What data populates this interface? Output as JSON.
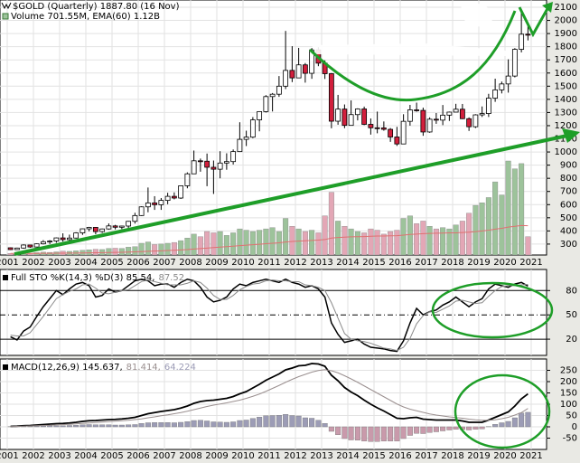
{
  "chart_data": [
    {
      "type": "candlestick",
      "title": "$GOLD (Quarterly) 1887.80 (16 Nov)",
      "legend": "Volume 701.55M, EMA(60) 1.12B",
      "open": [
        272,
        258,
        270,
        293,
        278,
        302,
        318,
        323,
        347,
        334,
        346,
        385,
        416,
        427,
        395,
        415,
        438,
        428,
        437,
        473,
        517,
        583,
        613,
        599,
        632,
        663,
        650,
        743,
        834,
        933,
        930,
        884,
        869,
        916,
        927,
        1003,
        1096,
        1113,
        1244,
        1307,
        1421,
        1439,
        1500,
        1620,
        1563,
        1662,
        1598,
        1776,
        1675,
        1595,
        1234,
        1326,
        1202,
        1284,
        1327,
        1210,
        1184,
        1183,
        1172,
        1114,
        1061,
        1233,
        1320,
        1316,
        1152,
        1249,
        1242,
        1280,
        1303,
        1325,
        1253,
        1192,
        1282,
        1292,
        1409,
        1472,
        1517,
        1577,
        1780,
        1895
      ],
      "high": [
        274,
        273,
        298,
        294,
        305,
        330,
        330,
        350,
        382,
        372,
        390,
        418,
        431,
        430,
        418,
        457,
        446,
        440,
        476,
        538,
        587,
        730,
        664,
        650,
        690,
        693,
        745,
        845,
        1011,
        950,
        988,
        935,
        1006,
        990,
        1019,
        1226,
        1162,
        1265,
        1310,
        1432,
        1448,
        1577,
        1920,
        1804,
        1791,
        1676,
        1790,
        1796,
        1696,
        1600,
        1434,
        1361,
        1392,
        1332,
        1345,
        1255,
        1307,
        1232,
        1182,
        1191,
        1287,
        1358,
        1375,
        1337,
        1263,
        1296,
        1357,
        1307,
        1366,
        1365,
        1263,
        1287,
        1346,
        1442,
        1557,
        1535,
        1704,
        1789,
        2075,
        1966
      ],
      "low": [
        255,
        255,
        265,
        272,
        277,
        297,
        301,
        310,
        319,
        320,
        342,
        370,
        397,
        375,
        385,
        410,
        411,
        414,
        418,
        456,
        514,
        542,
        560,
        560,
        603,
        640,
        643,
        724,
        833,
        850,
        740,
        681,
        800,
        865,
        905,
        1000,
        1045,
        1105,
        1157,
        1300,
        1308,
        1419,
        1478,
        1531,
        1562,
        1527,
        1556,
        1652,
        1555,
        1180,
        1207,
        1181,
        1202,
        1240,
        1204,
        1132,
        1142,
        1162,
        1077,
        1046,
        1061,
        1200,
        1306,
        1123,
        1146,
        1214,
        1204,
        1236,
        1302,
        1250,
        1160,
        1182,
        1266,
        1266,
        1381,
        1445,
        1451,
        1567,
        1757,
        1848
      ],
      "close": [
        258,
        270,
        293,
        278,
        302,
        318,
        323,
        347,
        334,
        346,
        385,
        416,
        427,
        395,
        415,
        438,
        428,
        437,
        473,
        517,
        583,
        613,
        599,
        632,
        663,
        650,
        743,
        834,
        933,
        930,
        884,
        869,
        916,
        927,
        1003,
        1096,
        1113,
        1244,
        1307,
        1421,
        1439,
        1500,
        1620,
        1563,
        1662,
        1598,
        1776,
        1675,
        1595,
        1234,
        1326,
        1202,
        1284,
        1327,
        1210,
        1184,
        1183,
        1172,
        1114,
        1061,
        1233,
        1320,
        1316,
        1152,
        1249,
        1242,
        1280,
        1303,
        1325,
        1253,
        1192,
        1282,
        1292,
        1409,
        1472,
        1517,
        1577,
        1780,
        1895,
        1887.8
      ],
      "volume": [
        60,
        50,
        70,
        60,
        90,
        110,
        100,
        120,
        150,
        140,
        160,
        180,
        200,
        220,
        210,
        250,
        260,
        250,
        300,
        320,
        450,
        500,
        400,
        420,
        450,
        480,
        550,
        650,
        800,
        700,
        900,
        850,
        900,
        750,
        850,
        1000,
        950,
        900,
        950,
        1000,
        1050,
        900,
        1400,
        1100,
        1000,
        900,
        950,
        850,
        1500,
        2400,
        1300,
        1100,
        1000,
        900,
        850,
        1000,
        950,
        800,
        900,
        950,
        1400,
        1500,
        1200,
        1300,
        1100,
        1000,
        1050,
        1000,
        1150,
        1300,
        1600,
        1900,
        2000,
        2200,
        2800,
        2300,
        3600,
        3300,
        3500,
        701.55
      ],
      "volume_ema": [
        60,
        60,
        61,
        61,
        62,
        64,
        65,
        67,
        70,
        72,
        75,
        78,
        82,
        87,
        91,
        96,
        101,
        106,
        113,
        120,
        132,
        144,
        153,
        162,
        171,
        181,
        193,
        208,
        230,
        245,
        266,
        285,
        305,
        320,
        338,
        360,
        378,
        395,
        413,
        432,
        452,
        467,
        498,
        518,
        534,
        546,
        559,
        569,
        591,
        650,
        671,
        685,
        695,
        702,
        707,
        717,
        725,
        728,
        734,
        741,
        763,
        788,
        802,
        819,
        828,
        834,
        841,
        847,
        850,
        860,
        875,
        895,
        920,
        950,
        990,
        1020,
        1070,
        1100,
        1130,
        1120
      ],
      "up_color": "#ffffff",
      "down_color": "#d21f3c",
      "volume_up_color": "#9dc39b",
      "volume_down_color": "#e3a7b6",
      "ema_color": "#e07070",
      "ylim": [
        217,
        2155
      ],
      "yticks": [
        300,
        400,
        500,
        600,
        700,
        800,
        900,
        1000,
        1100,
        1200,
        1300,
        1400,
        1500,
        1600,
        1700,
        1800,
        1900,
        2000,
        2100
      ],
      "xticks": [
        2001,
        2002,
        2003,
        2004,
        2005,
        2006,
        2007,
        2008,
        2009,
        2010,
        2011,
        2012,
        2013,
        2014,
        2015,
        2016,
        2017,
        2018,
        2019,
        2020,
        2021
      ],
      "grid": true
    },
    {
      "type": "line",
      "legend": [
        "Full STO %K(14,3) %D(3) 85.54,",
        "87.52"
      ],
      "series": [
        {
          "color": "#000000",
          "values": [
            23,
            19,
            30,
            35,
            48,
            60,
            70,
            80,
            75,
            82,
            88,
            90,
            86,
            72,
            74,
            82,
            78,
            80,
            86,
            92,
            94,
            92,
            86,
            88,
            88,
            84,
            90,
            94,
            92,
            84,
            72,
            66,
            68,
            72,
            82,
            88,
            86,
            90,
            92,
            94,
            92,
            90,
            94,
            90,
            88,
            84,
            86,
            82,
            72,
            40,
            26,
            16,
            18,
            20,
            14,
            10,
            9,
            8,
            6,
            5,
            18,
            40,
            58,
            50,
            54,
            56,
            62,
            66,
            72,
            66,
            60,
            66,
            70,
            82,
            88,
            86,
            84,
            88,
            90,
            85.54
          ]
        },
        {
          "color": "#8a8a8a",
          "values": [
            25,
            24,
            24,
            28,
            38,
            48,
            59,
            70,
            75,
            79,
            82,
            87,
            88,
            83,
            77,
            76,
            78,
            80,
            81,
            86,
            91,
            93,
            91,
            89,
            87,
            87,
            87,
            89,
            92,
            90,
            83,
            74,
            69,
            69,
            74,
            81,
            85,
            88,
            89,
            92,
            93,
            92,
            92,
            91,
            91,
            87,
            86,
            84,
            80,
            65,
            46,
            27,
            20,
            18,
            17,
            15,
            12,
            9,
            8,
            6,
            10,
            21,
            39,
            49,
            54,
            53,
            57,
            61,
            67,
            68,
            66,
            64,
            65,
            73,
            80,
            85,
            86,
            86,
            87,
            87.52
          ]
        }
      ],
      "ylim": [
        0,
        106
      ],
      "yticks": [
        20,
        50,
        80
      ],
      "line_styles": [
        "solid",
        "dashdot",
        "solid"
      ]
    },
    {
      "type": "macd",
      "legend": [
        "MACD(12,26,9) 145.637,",
        "81.414,",
        "64.224"
      ],
      "series": [
        {
          "color": "#000000",
          "values": [
            2,
            3,
            5,
            6,
            8,
            10,
            12,
            14,
            15,
            17,
            20,
            24,
            27,
            28,
            30,
            32,
            33,
            35,
            38,
            42,
            50,
            58,
            63,
            68,
            72,
            76,
            83,
            92,
            104,
            112,
            116,
            118,
            122,
            126,
            134,
            146,
            156,
            172,
            188,
            206,
            220,
            234,
            252,
            260,
            270,
            272,
            280,
            278,
            268,
            228,
            204,
            174,
            154,
            138,
            118,
            100,
            84,
            70,
            54,
            38,
            36,
            40,
            42,
            34,
            32,
            30,
            30,
            30,
            30,
            26,
            20,
            20,
            20,
            30,
            42,
            54,
            66,
            92,
            124,
            145.637
          ]
        },
        {
          "color": "#9a8f8f",
          "values": [
            1,
            2,
            3,
            4,
            5,
            6,
            7,
            9,
            10,
            11,
            13,
            15,
            17,
            19,
            21,
            23,
            25,
            27,
            29,
            32,
            35,
            40,
            44,
            49,
            53,
            58,
            63,
            69,
            76,
            83,
            90,
            96,
            101,
            106,
            112,
            118,
            126,
            135,
            145,
            157,
            170,
            183,
            197,
            210,
            222,
            232,
            242,
            249,
            253,
            248,
            239,
            226,
            212,
            197,
            181,
            165,
            149,
            133,
            117,
            101,
            88,
            78,
            71,
            64,
            57,
            52,
            48,
            44,
            41,
            38,
            34,
            31,
            29,
            29,
            31,
            36,
            42,
            52,
            63,
            81.414
          ]
        }
      ],
      "histogram": {
        "color": "#9c9cb6",
        "negative_color": "#c99aab",
        "values": [
          1,
          1,
          2,
          2,
          3,
          4,
          5,
          5,
          5,
          6,
          7,
          9,
          10,
          9,
          9,
          9,
          8,
          8,
          9,
          10,
          15,
          18,
          19,
          19,
          19,
          18,
          20,
          23,
          28,
          29,
          26,
          22,
          21,
          20,
          22,
          28,
          30,
          37,
          43,
          49,
          50,
          51,
          55,
          50,
          48,
          40,
          38,
          29,
          15,
          -20,
          -35,
          -52,
          -58,
          -59,
          -63,
          -65,
          -65,
          -63,
          -63,
          -63,
          -52,
          -38,
          -29,
          -30,
          -25,
          -22,
          -18,
          -14,
          -11,
          -12,
          -14,
          -11,
          -9,
          1,
          11,
          18,
          24,
          40,
          61,
          64.224
        ]
      },
      "ylim": [
        -100,
        300
      ],
      "yticks": [
        -50,
        0,
        50,
        100,
        150,
        200,
        250
      ]
    }
  ]
}
